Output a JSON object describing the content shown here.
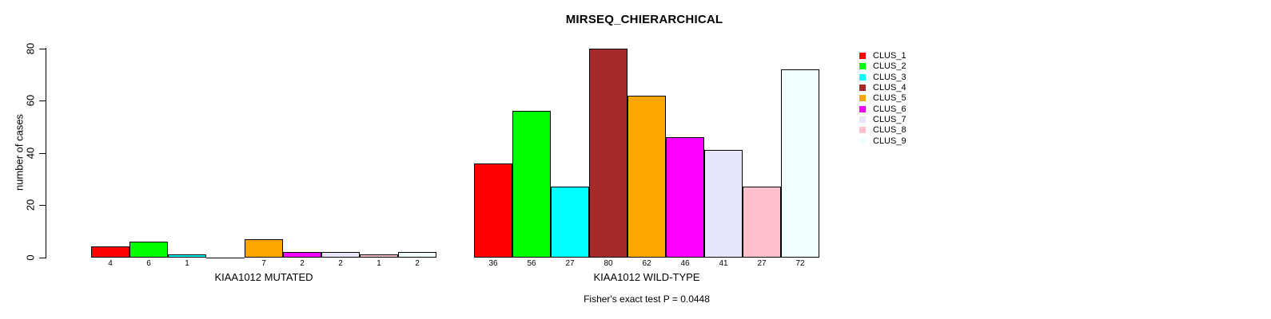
{
  "chart_data": {
    "type": "bar",
    "title": "MIRSEQ_CHIERARCHICAL",
    "ylabel": "number of cases",
    "xlabel": "",
    "ylim": [
      0,
      80
    ],
    "y_ticks": [
      0,
      20,
      40,
      60,
      80
    ],
    "grid": false,
    "legend_position": "right",
    "bar_border_color": "#000000",
    "bar_value_labels_shown": true,
    "zero_value_label_hidden": true,
    "categories": [
      "KIAA1012 MUTATED",
      "KIAA1012 WILD-TYPE"
    ],
    "series": [
      {
        "name": "CLUS_1",
        "color": "#FF0000",
        "values": [
          4,
          36
        ]
      },
      {
        "name": "CLUS_2",
        "color": "#00FF00",
        "values": [
          6,
          56
        ]
      },
      {
        "name": "CLUS_3",
        "color": "#00FFFF",
        "values": [
          1,
          27
        ]
      },
      {
        "name": "CLUS_4",
        "color": "#A52A2A",
        "values": [
          0,
          80
        ]
      },
      {
        "name": "CLUS_5",
        "color": "#FFA500",
        "values": [
          7,
          62
        ]
      },
      {
        "name": "CLUS_6",
        "color": "#FF00FF",
        "values": [
          2,
          46
        ]
      },
      {
        "name": "CLUS_7",
        "color": "#E6E6FA",
        "values": [
          2,
          41
        ]
      },
      {
        "name": "CLUS_8",
        "color": "#FFC0CB",
        "values": [
          1,
          27
        ]
      },
      {
        "name": "CLUS_9",
        "color": "#F0FFFF",
        "values": [
          2,
          72
        ]
      }
    ],
    "annotation": "Fisher's exact test P = 0.0448"
  }
}
